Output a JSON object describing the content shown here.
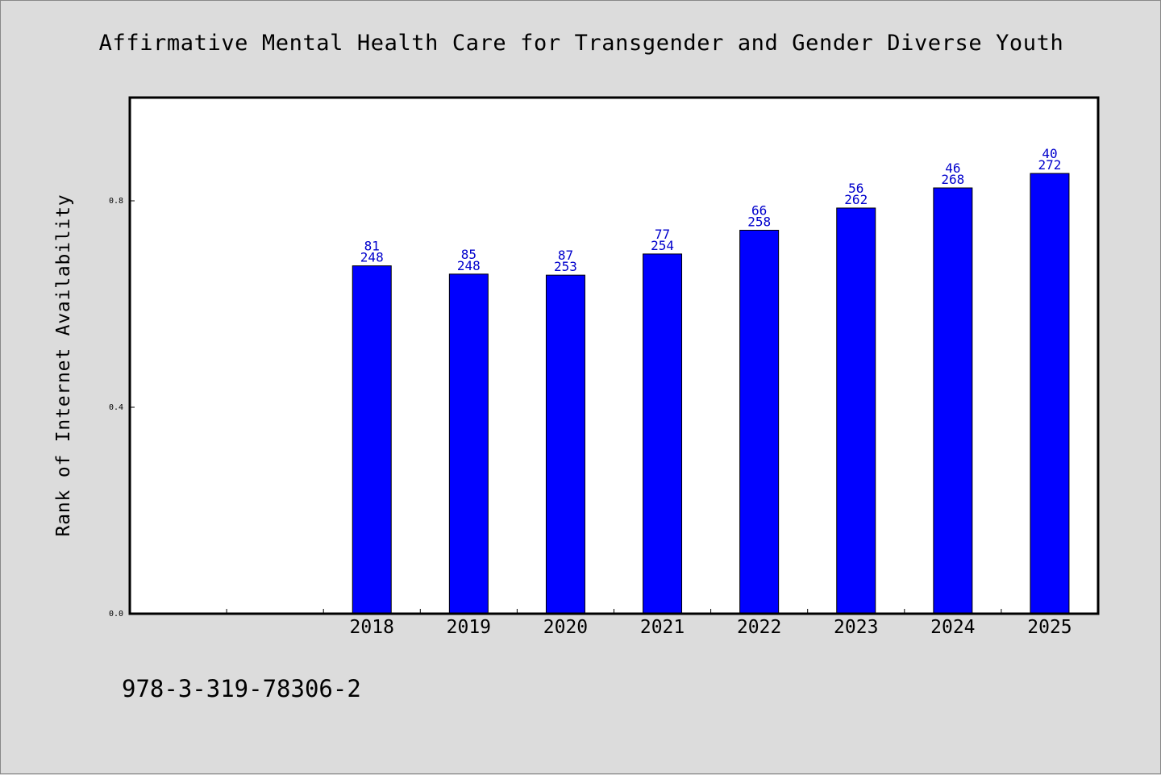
{
  "chart_data": {
    "type": "bar",
    "title": "Affirmative Mental Health Care for Transgender and Gender Diverse Youth",
    "ylabel": "Rank of Internet Availability",
    "xlabel": "",
    "categories": [
      "",
      "",
      "2018",
      "2019",
      "2020",
      "2021",
      "2022",
      "2023",
      "2024",
      "2025"
    ],
    "series": [
      {
        "values": [
          null,
          null,
          0.674,
          0.658,
          0.656,
          0.697,
          0.743,
          0.786,
          0.825,
          0.853
        ],
        "labels_top": [
          null,
          null,
          "81",
          "85",
          "87",
          "77",
          "66",
          "56",
          "46",
          "40"
        ],
        "labels_bottom": [
          null,
          null,
          "248",
          "248",
          "253",
          "254",
          "258",
          "262",
          "268",
          "272"
        ],
        "color": "#0000ff"
      }
    ],
    "ylim": [
      0,
      1.0
    ],
    "yticks": [
      "0.0",
      "0.4",
      "0.8"
    ],
    "grid": false,
    "legend": "none"
  },
  "footer": {
    "isbn": "978-3-319-78306-2"
  },
  "colors": {
    "background": "#dcdcdc",
    "plot_background": "#ffffff",
    "bar": "#0000ff",
    "data_label": "#0000cc"
  }
}
